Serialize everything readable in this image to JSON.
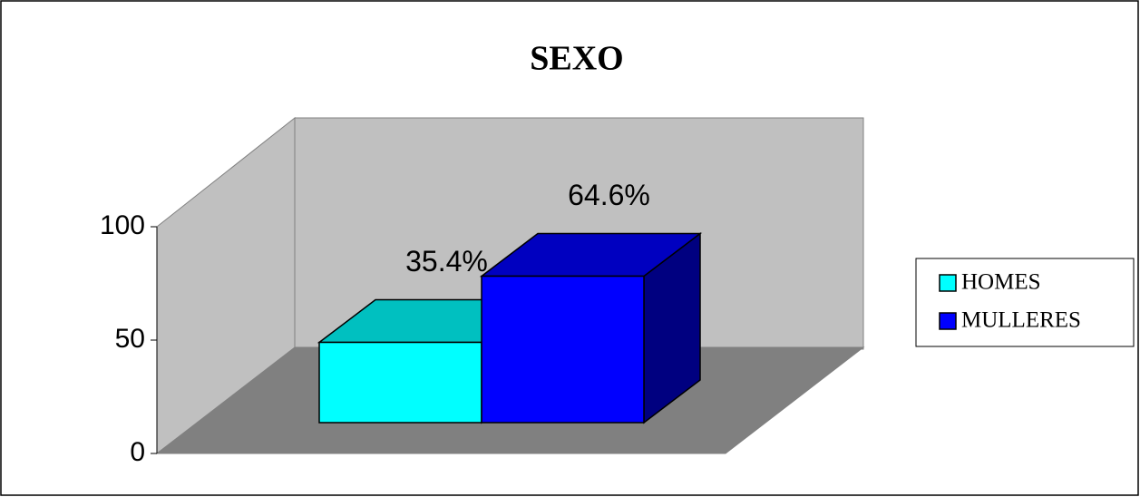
{
  "chart_data": {
    "type": "bar3d",
    "title": "SEXO",
    "series": [
      {
        "name": "HOMES",
        "color": "#00ffff",
        "top_color": "#00c0c0",
        "side_color": "#008080",
        "values": [
          35.4
        ],
        "value_labels": [
          "35.4%"
        ]
      },
      {
        "name": "MULLERES",
        "color": "#0000ff",
        "top_color": "#0000c0",
        "side_color": "#000080",
        "values": [
          64.6
        ],
        "value_labels": [
          "64.6%"
        ]
      }
    ],
    "ylim": [
      0,
      100
    ],
    "yticks": [
      0,
      50,
      100
    ],
    "legend": "right"
  }
}
